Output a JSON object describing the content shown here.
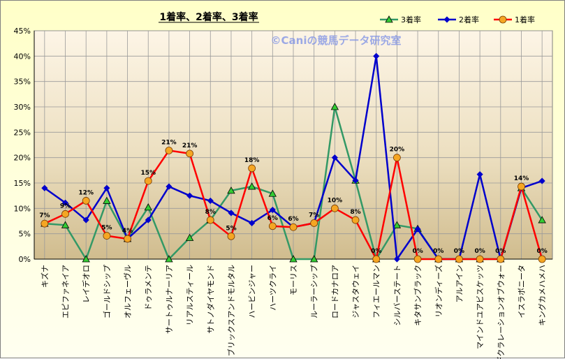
{
  "chart_data": {
    "type": "line",
    "title": "1着率、2着率、3着率",
    "watermark": "©Caniの競馬データ研究室",
    "ylim": [
      0,
      45
    ],
    "yticks": [
      "0%",
      "5%",
      "10%",
      "15%",
      "20%",
      "25%",
      "30%",
      "35%",
      "40%",
      "45%"
    ],
    "categories": [
      "キズナ",
      "エピファネイア",
      "レイデオロ",
      "ゴールドシップ",
      "オルフェーヴル",
      "ドゥラメンテ",
      "サートゥルナーリア",
      "リアルスティール",
      "サトノダイヤモンド",
      "ブリックスアンドモルタル",
      "ハービンジャー",
      "ハーツクライ",
      "モーリス",
      "ルーラーシップ",
      "ロードカナロア",
      "ジャスタウェイ",
      "フィエールマン",
      "シルバーステート",
      "キタサンブラック",
      "リオンディーズ",
      "アルアイン",
      "マインドユアビスケッツ",
      "デクラレーションオブウォー",
      "イスラボニータ",
      "キングカメハメハ"
    ],
    "series": [
      {
        "name": "3着率",
        "color": "#339966",
        "marker": "triangle",
        "values": [
          7,
          6.7,
          0,
          11.5,
          4,
          10.2,
          0,
          4.2,
          7.7,
          13.5,
          14.3,
          12.9,
          0,
          0,
          30,
          15.5,
          0,
          6.7,
          6,
          0,
          0,
          0,
          0,
          14,
          7.7
        ]
      },
      {
        "name": "2着率",
        "color": "#0000cc",
        "marker": "diamond",
        "values": [
          14,
          11.1,
          7.7,
          14,
          4,
          7.7,
          14.3,
          12.5,
          11.5,
          9.1,
          7.1,
          9.7,
          6.3,
          7.1,
          20,
          15.5,
          40,
          0,
          5.9,
          0,
          0,
          16.7,
          0,
          14,
          15.4
        ]
      },
      {
        "name": "1着率",
        "color": "#ff0000",
        "marker": "circle",
        "values": [
          7,
          8.9,
          11.5,
          4.6,
          4,
          15.4,
          21.4,
          20.8,
          7.7,
          4.5,
          17.9,
          6.5,
          6.3,
          7.1,
          10,
          7.7,
          0,
          20,
          0,
          0,
          0,
          0,
          0,
          14.3,
          0
        ]
      }
    ],
    "data_labels": [
      "7%",
      "9%",
      "12%",
      "5%",
      "4%",
      "15%",
      "21%",
      "21%",
      "8%",
      "5%",
      "18%",
      "6%",
      "6%",
      "7%",
      "10%",
      "8%",
      "0%",
      "20%",
      "0%",
      "0%",
      "0%",
      "0%",
      "0%",
      "14%",
      "0%"
    ],
    "grid": true,
    "legend_position": "top-right"
  }
}
